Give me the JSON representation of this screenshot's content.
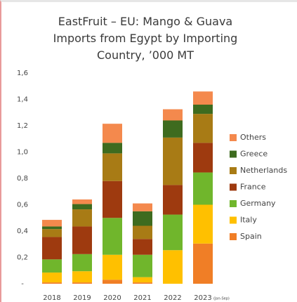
{
  "chart_data": {
    "type": "stacked_bar",
    "title": "EastFruit – EU: Mango & Guava Imports from Egypt by Importing Country, ’000 MT",
    "categories": [
      "2018",
      "2019",
      "2020",
      "2021",
      "2022",
      "2023"
    ],
    "annotations": [
      "(Jan-Sep)"
    ],
    "series": [
      {
        "name": "Spain",
        "color": "#f07e26",
        "values": [
          0.01,
          0.01,
          0.03,
          0.01,
          0,
          0.305
        ]
      },
      {
        "name": "Italy",
        "color": "#ffc000",
        "values": [
          0.075,
          0.085,
          0.19,
          0.04,
          0.255,
          0.295
        ]
      },
      {
        "name": "Germany",
        "color": "#70b62c",
        "values": [
          0.1,
          0.13,
          0.28,
          0.17,
          0.27,
          0.245
        ]
      },
      {
        "name": "France",
        "color": "#9e3a0f",
        "values": [
          0.17,
          0.21,
          0.28,
          0.12,
          0.225,
          0.225
        ]
      },
      {
        "name": "Netherlands",
        "color": "#a87b15",
        "values": [
          0.06,
          0.13,
          0.21,
          0.1,
          0.36,
          0.22
        ]
      },
      {
        "name": "Greece",
        "color": "#3e6b1f",
        "values": [
          0.02,
          0.04,
          0.08,
          0.11,
          0.13,
          0.07
        ]
      },
      {
        "name": "Others",
        "color": "#f4894d",
        "values": [
          0.05,
          0.035,
          0.145,
          0.06,
          0.085,
          0.1
        ]
      }
    ],
    "ylim": [
      0,
      1.6
    ],
    "yticks": [
      {
        "value": 0,
        "label": "-"
      },
      {
        "value": 0.2,
        "label": "0,2"
      },
      {
        "value": 0.4,
        "label": "0,4"
      },
      {
        "value": 0.6,
        "label": "0,6"
      },
      {
        "value": 0.8,
        "label": "0,8"
      },
      {
        "value": 1.0,
        "label": "1,0"
      },
      {
        "value": 1.2,
        "label": "1,2"
      },
      {
        "value": 1.4,
        "label": "1,4"
      },
      {
        "value": 1.6,
        "label": "1,6"
      }
    ],
    "grid": false
  }
}
